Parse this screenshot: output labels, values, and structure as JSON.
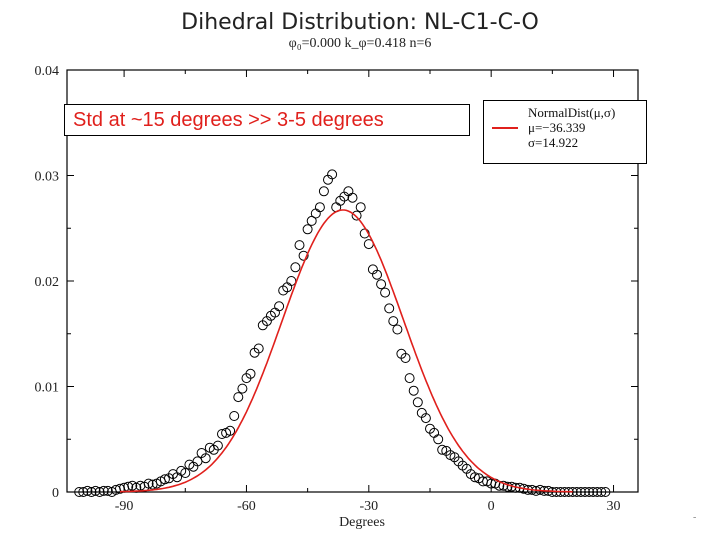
{
  "title": "Dihedral Distribution: NL-C1-C-O",
  "subtitle": "φ₀=0.000   k_φ=0.418   n=6",
  "annotation": "Std at ~15 degrees >> 3-5 degrees",
  "legend": {
    "title": "NormalDist(μ,σ)",
    "mu_label": "μ=−36.339",
    "sigma_label": "σ=14.922"
  },
  "colors": {
    "fit": "#e0201c",
    "points": "#000000",
    "annotation": "#e0201c"
  },
  "stray_mark": "-",
  "chart_data": {
    "type": "scatter",
    "title": "Dihedral Distribution: NL-C1-C-O",
    "xlabel": "Degrees",
    "ylabel": "",
    "xlim": [
      -104,
      36
    ],
    "ylim": [
      0,
      0.04
    ],
    "xticks": [
      -90,
      -60,
      -30,
      0,
      30
    ],
    "xtick_labels": [
      "-90",
      "-60",
      "-30",
      "0",
      "30"
    ],
    "yticks": [
      0,
      0.01,
      0.02,
      0.03,
      0.04
    ],
    "ytick_labels": [
      "0",
      "0.01",
      "0.02",
      "0.03",
      "0.04"
    ],
    "grid": false,
    "legend_position": "top-right",
    "series": [
      {
        "kind": "points",
        "x": [
          -101,
          -100,
          -99,
          -98,
          -97,
          -96,
          -95,
          -94,
          -93,
          -92,
          -91,
          -90,
          -89,
          -88,
          -87,
          -86,
          -85,
          -84,
          -83,
          -82,
          -81,
          -80,
          -79,
          -78,
          -77,
          -76,
          -75,
          -74,
          -73,
          -72,
          -71,
          -70,
          -69,
          -68,
          -67,
          -66,
          -65,
          -64,
          -63,
          -62,
          -61,
          -60,
          -59,
          -58,
          -57,
          -56,
          -55,
          -54,
          -53,
          -52,
          -51,
          -50,
          -49,
          -48,
          -47,
          -46,
          -45,
          -44,
          -43,
          -42,
          -41,
          -40,
          -39,
          -38,
          -37,
          -36,
          -35,
          -34,
          -33,
          -32,
          -31,
          -30,
          -29,
          -28,
          -27,
          -26,
          -25,
          -24,
          -23,
          -22,
          -21,
          -20,
          -19,
          -18,
          -17,
          -16,
          -15,
          -14,
          -13,
          -12,
          -11,
          -10,
          -9,
          -8,
          -7,
          -6,
          -5,
          -4,
          -3,
          -2,
          -1,
          0,
          1,
          2,
          3,
          4,
          5,
          6,
          7,
          8,
          9,
          10,
          11,
          12,
          13,
          14,
          15,
          16,
          17,
          18,
          19,
          20,
          21,
          22,
          23,
          24,
          25,
          26,
          27,
          28
        ],
        "y": [
          0.0,
          0.0,
          0.0001,
          0.0,
          0.0001,
          0.0,
          0.0001,
          0.0001,
          0.0,
          0.0002,
          0.0003,
          0.0004,
          0.0005,
          0.0006,
          0.0004,
          0.0006,
          0.0005,
          0.0008,
          0.0007,
          0.0008,
          0.001,
          0.0012,
          0.0013,
          0.0017,
          0.0014,
          0.002,
          0.0018,
          0.0026,
          0.0024,
          0.0029,
          0.0037,
          0.0032,
          0.0042,
          0.004,
          0.0044,
          0.0055,
          0.0056,
          0.0058,
          0.0072,
          0.009,
          0.0098,
          0.0108,
          0.0112,
          0.0132,
          0.0136,
          0.0158,
          0.0162,
          0.0167,
          0.017,
          0.0176,
          0.0191,
          0.0194,
          0.02,
          0.0213,
          0.0234,
          0.0224,
          0.0249,
          0.0257,
          0.0264,
          0.027,
          0.0285,
          0.0296,
          0.0301,
          0.027,
          0.0276,
          0.028,
          0.0285,
          0.0279,
          0.0262,
          0.027,
          0.0245,
          0.0235,
          0.0211,
          0.0206,
          0.0197,
          0.0189,
          0.0174,
          0.0162,
          0.0154,
          0.0131,
          0.0127,
          0.0108,
          0.0096,
          0.0085,
          0.0075,
          0.007,
          0.006,
          0.0056,
          0.005,
          0.004,
          0.0039,
          0.0035,
          0.0033,
          0.0029,
          0.0025,
          0.0022,
          0.0017,
          0.0014,
          0.0013,
          0.001,
          0.001,
          0.0008,
          0.0008,
          0.0006,
          0.0006,
          0.0005,
          0.0005,
          0.0004,
          0.0004,
          0.0003,
          0.0002,
          0.0002,
          0.0001,
          0.0002,
          0.0001,
          0.0001,
          0.0,
          0.0,
          0.0,
          0.0,
          0.0,
          0.0,
          0.0,
          0.0,
          0.0,
          0.0,
          0.0,
          0.0,
          0.0,
          0.0
        ]
      },
      {
        "kind": "fit-curve",
        "name": "NormalDist(μ,σ)",
        "mu": -36.339,
        "sigma": 14.922,
        "x_range": [
          -91,
          20
        ]
      }
    ]
  }
}
